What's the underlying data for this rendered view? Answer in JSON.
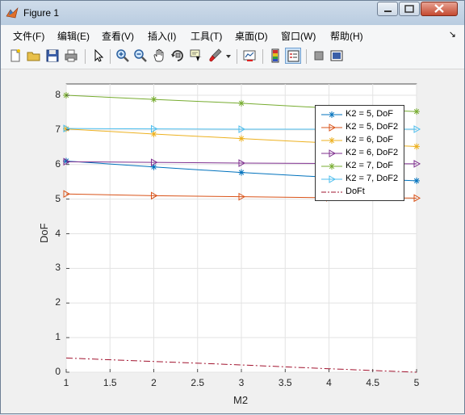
{
  "window": {
    "title": "Figure 1",
    "icon": "matlab-figure-icon"
  },
  "menu": {
    "items": [
      "文件(F)",
      "编辑(E)",
      "查看(V)",
      "插入(I)",
      "工具(T)",
      "桌面(D)",
      "窗口(W)",
      "帮助(H)"
    ],
    "pin_glyph": "↘"
  },
  "toolbar": {
    "buttons": [
      "new-figure-icon",
      "open-file-icon",
      "save-icon",
      "print-icon",
      "pointer-icon",
      "zoom-in-icon",
      "zoom-out-icon",
      "pan-hand-icon",
      "rotate-3d-icon",
      "data-cursor-icon",
      "brush-icon",
      "link-plot-icon",
      "colorbar-icon",
      "legend-icon",
      "hide-plot-tools-icon",
      "show-plot-tools-icon"
    ]
  },
  "chart_data": {
    "type": "line",
    "title": "",
    "xlabel": "M2",
    "ylabel": "DoF",
    "xlim": [
      1,
      5
    ],
    "ylim": [
      0,
      8
    ],
    "xticks": [
      "1",
      "1.5",
      "2",
      "2.5",
      "3",
      "3.5",
      "4",
      "4.5",
      "5"
    ],
    "yticks": [
      "0",
      "1",
      "2",
      "3",
      "4",
      "5",
      "6",
      "7",
      "8"
    ],
    "grid": true,
    "legend_position": "top-right",
    "x": [
      1,
      2,
      3,
      4,
      5
    ],
    "series": [
      {
        "name": "K2 = 5, DoF",
        "color": "#0072bd",
        "marker": "star",
        "style": "solid",
        "values": [
          6.1,
          5.93,
          5.77,
          5.63,
          5.53
        ]
      },
      {
        "name": "K2 = 5, DoF2",
        "color": "#d95319",
        "marker": "triangle",
        "style": "solid",
        "values": [
          5.15,
          5.1,
          5.07,
          5.04,
          5.03
        ]
      },
      {
        "name": "K2 = 6, DoF",
        "color": "#edb120",
        "marker": "star",
        "style": "solid",
        "values": [
          7.03,
          6.88,
          6.75,
          6.62,
          6.52
        ]
      },
      {
        "name": "K2 = 6, DoF2",
        "color": "#7e2f8e",
        "marker": "triangle",
        "style": "solid",
        "values": [
          6.08,
          6.06,
          6.04,
          6.03,
          6.02
        ]
      },
      {
        "name": "K2 = 7, DoF",
        "color": "#77ac30",
        "marker": "star",
        "style": "solid",
        "values": [
          8.0,
          7.88,
          7.77,
          7.63,
          7.53
        ]
      },
      {
        "name": "K2 = 7, DoF2",
        "color": "#4dbeee",
        "marker": "triangle",
        "style": "solid",
        "values": [
          7.04,
          7.03,
          7.02,
          7.02,
          7.02
        ]
      },
      {
        "name": "DoFt",
        "color": "#a2142f",
        "marker": "none",
        "style": "dashdot",
        "values": [
          0.41,
          0.31,
          0.21,
          0.1,
          0.0
        ]
      }
    ]
  }
}
